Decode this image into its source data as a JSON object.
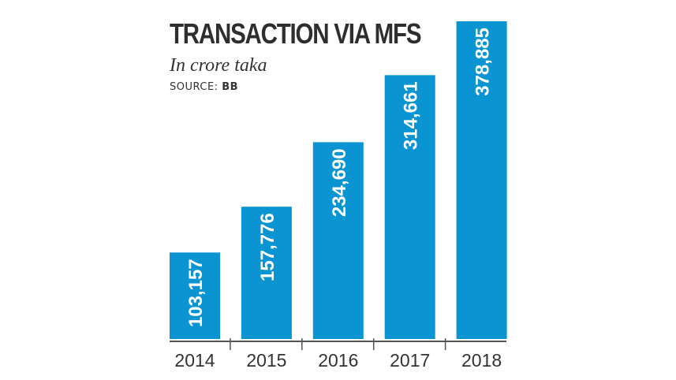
{
  "chart_data": {
    "type": "bar",
    "title": "TRANSACTION VIA MFS",
    "subtitle": "In crore taka",
    "source_label": "SOURCE:",
    "source_value": "BB",
    "categories": [
      "2014",
      "2015",
      "2016",
      "2017",
      "2018"
    ],
    "values": [
      103157,
      157776,
      234690,
      314661,
      378885
    ],
    "data_labels": [
      "103,157",
      "157,776",
      "234,690",
      "314,661",
      "378,885"
    ],
    "ylim": [
      0,
      378885
    ],
    "grid": false,
    "bar_color": "#0a94d2",
    "label_color": "#ffffff",
    "axis_color": "#555555"
  }
}
